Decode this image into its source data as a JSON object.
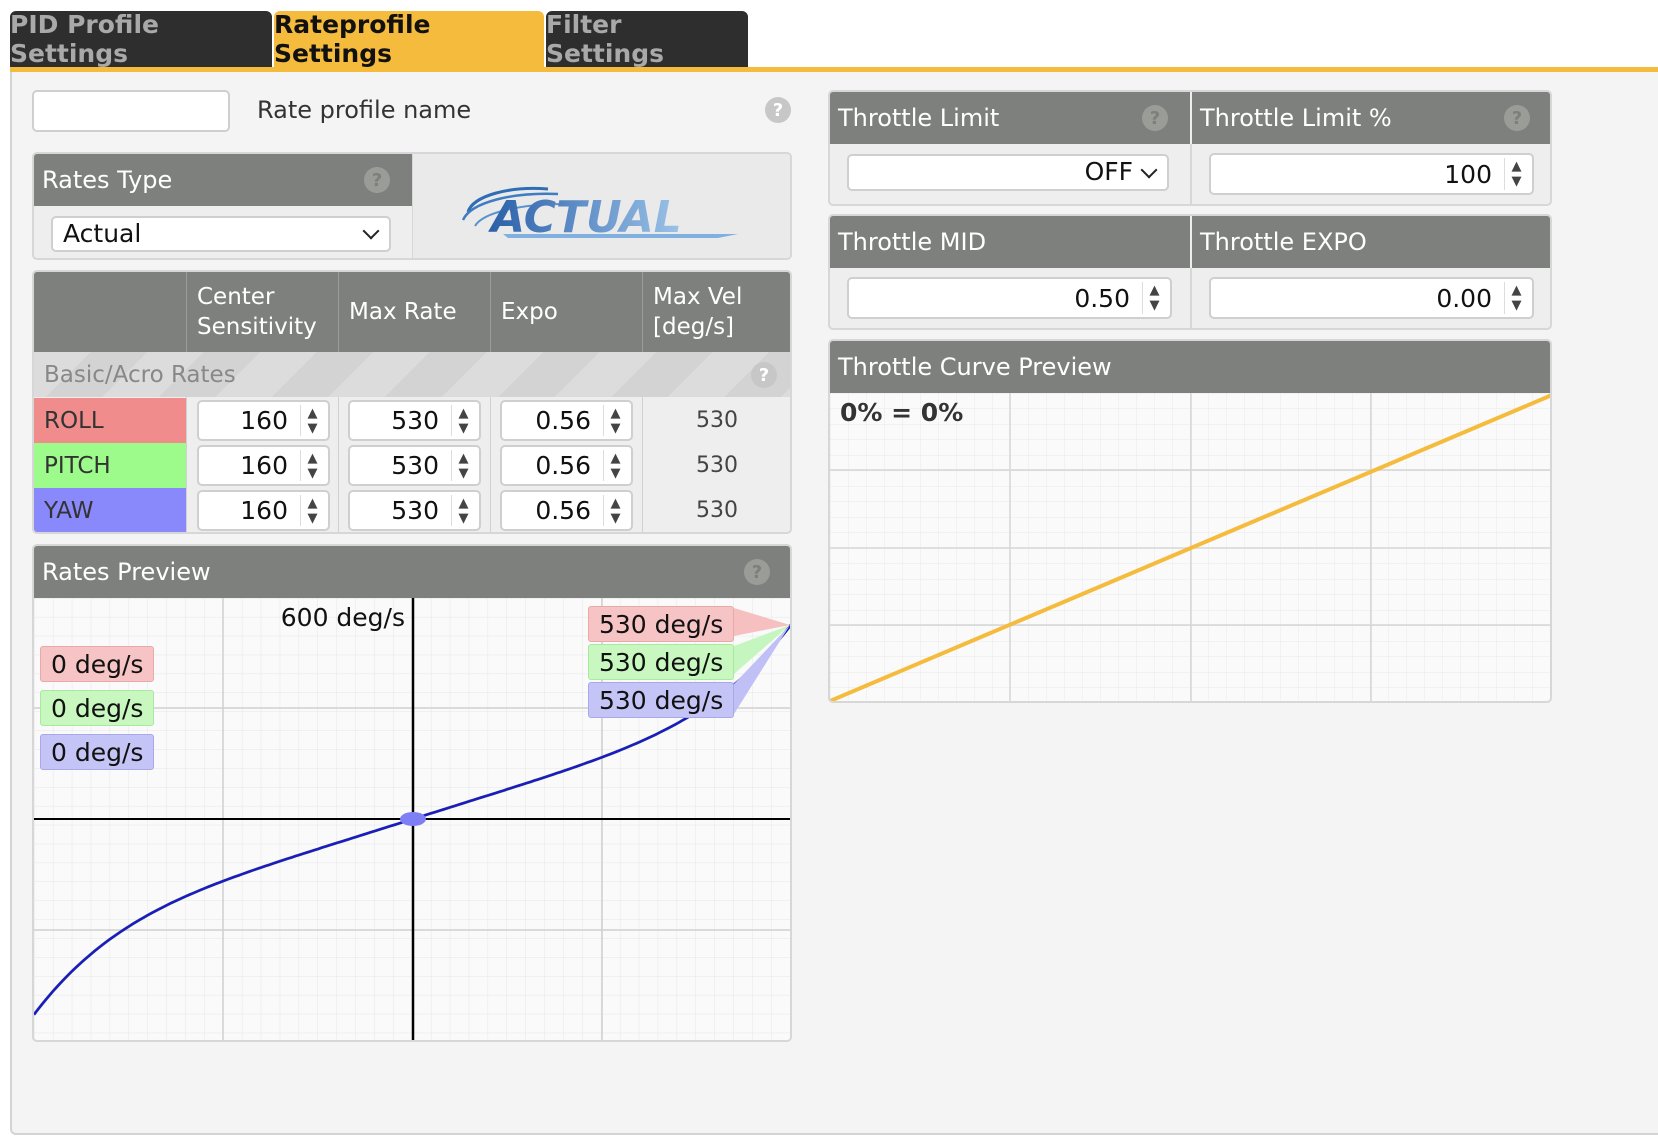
{
  "tabs": [
    {
      "label": "PID Profile Settings",
      "active": false
    },
    {
      "label": "Rateprofile Settings",
      "active": true
    },
    {
      "label": "Filter Settings",
      "active": false
    }
  ],
  "profile": {
    "name_value": "",
    "name_label": "Rate profile name"
  },
  "rates_type": {
    "header": "Rates Type",
    "selected": "Actual",
    "logo_text": "ACTUAL"
  },
  "rates_table": {
    "headers": [
      "",
      "Center Sensitivity",
      "Max Rate",
      "Expo",
      "Max Vel [deg/s]"
    ],
    "section": "Basic/Acro Rates",
    "rows": [
      {
        "axis": "ROLL",
        "center": "160",
        "max_rate": "530",
        "expo": "0.56",
        "max_vel": "530",
        "color": "#f08c8c"
      },
      {
        "axis": "PITCH",
        "center": "160",
        "max_rate": "530",
        "expo": "0.56",
        "max_vel": "530",
        "color": "#9cfb8a"
      },
      {
        "axis": "YAW",
        "center": "160",
        "max_rate": "530",
        "expo": "0.56",
        "max_vel": "530",
        "color": "#8989fb"
      }
    ]
  },
  "rates_preview": {
    "header": "Rates Preview",
    "axis_label": "600 deg/s",
    "left_tags": [
      "0 deg/s",
      "0 deg/s",
      "0 deg/s"
    ],
    "right_tags": [
      "530 deg/s",
      "530 deg/s",
      "530 deg/s"
    ]
  },
  "throttle": {
    "limit_header": "Throttle Limit",
    "limit_value": "OFF",
    "limit_pct_header": "Throttle Limit %",
    "limit_pct_value": "100",
    "mid_header": "Throttle MID",
    "mid_value": "0.50",
    "expo_header": "Throttle EXPO",
    "expo_value": "0.00",
    "curve_header": "Throttle Curve Preview",
    "curve_label": "0% = 0%"
  },
  "help_glyph": "?",
  "colors": {
    "accent": "#f5bb3d",
    "header": "#7d807c",
    "roll": "#f08c8c",
    "pitch": "#9cfb8a",
    "yaw": "#8989fb",
    "throttle_curve": "#f5bb3d"
  }
}
